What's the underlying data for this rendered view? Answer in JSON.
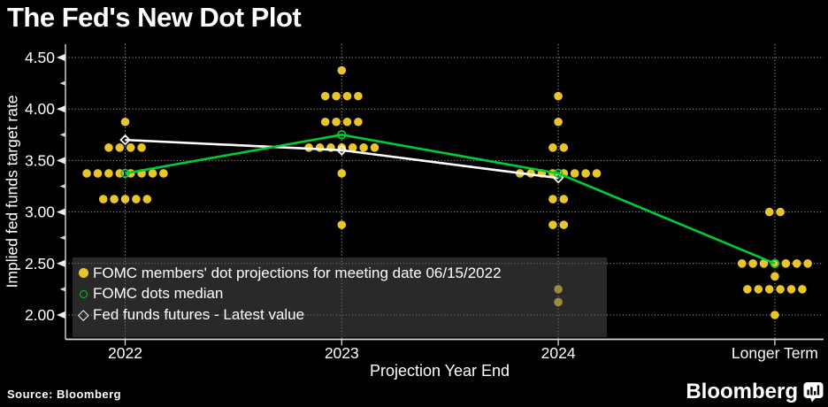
{
  "title": "The Fed's New Dot Plot",
  "source": "Source: Bloomberg",
  "brand": {
    "name": "Bloomberg",
    "icon": "bloomberg-bar-chart-bubble-icon"
  },
  "colors": {
    "background": "#000000",
    "text": "#FFFFFF",
    "dots": "#E9C52A",
    "median_line": "#00CC33",
    "futures_line": "#FFFFFF",
    "axis": "#D9D9D9",
    "legend_background": "rgba(82,82,82,0.5)"
  },
  "legend": {
    "items": [
      {
        "marker": "filled-yellow-dot",
        "label": "FOMC members' dot projections for meeting date 06/15/2022"
      },
      {
        "marker": "open-green-circle",
        "label": "FOMC dots median"
      },
      {
        "marker": "open-white-diamond",
        "label": "Fed funds futures - Latest value"
      }
    ]
  },
  "chart_data": {
    "type": "scatter",
    "title": "The Fed's New Dot Plot",
    "xlabel": "Projection Year End",
    "ylabel": "Implied fed funds target rate",
    "categories": [
      "2022",
      "2023",
      "2024",
      "Longer Term"
    ],
    "ylim": [
      1.85,
      4.63
    ],
    "yticks_major": [
      "4.50",
      "4.00",
      "3.50",
      "3.00",
      "2.50",
      "2.00"
    ],
    "yticks_minor": [
      4.25,
      3.75,
      3.25,
      2.75,
      2.25
    ],
    "grid": "dotted",
    "legend_position": "inside-bottom-left",
    "series": [
      {
        "name": "FOMC members' dot projections for meeting date 06/15/2022",
        "type": "dot-cluster",
        "marker": "filled-circle",
        "color": "#E9C52A",
        "dots": [
          {
            "category": "2022",
            "value": 3.875,
            "count": 1
          },
          {
            "category": "2022",
            "value": 3.625,
            "count": 4
          },
          {
            "category": "2022",
            "value": 3.375,
            "count": 8
          },
          {
            "category": "2022",
            "value": 3.125,
            "count": 5
          },
          {
            "category": "2023",
            "value": 4.375,
            "count": 1
          },
          {
            "category": "2023",
            "value": 4.125,
            "count": 4
          },
          {
            "category": "2023",
            "value": 3.875,
            "count": 4
          },
          {
            "category": "2023",
            "value": 3.625,
            "count": 7
          },
          {
            "category": "2023",
            "value": 3.375,
            "count": 1
          },
          {
            "category": "2023",
            "value": 2.875,
            "count": 1
          },
          {
            "category": "2024",
            "value": 4.125,
            "count": 1
          },
          {
            "category": "2024",
            "value": 3.875,
            "count": 1
          },
          {
            "category": "2024",
            "value": 3.625,
            "count": 2
          },
          {
            "category": "2024",
            "value": 3.375,
            "count": 8
          },
          {
            "category": "2024",
            "value": 3.125,
            "count": 2
          },
          {
            "category": "2024",
            "value": 2.875,
            "count": 2
          },
          {
            "category": "2024",
            "value": 2.25,
            "count": 1
          },
          {
            "category": "2024",
            "value": 2.125,
            "count": 1
          },
          {
            "category": "Longer Term",
            "value": 3.0,
            "count": 2
          },
          {
            "category": "Longer Term",
            "value": 2.5,
            "count": 7
          },
          {
            "category": "Longer Term",
            "value": 2.375,
            "count": 1
          },
          {
            "category": "Longer Term",
            "value": 2.25,
            "count": 6
          },
          {
            "category": "Longer Term",
            "value": 2.0,
            "count": 1
          }
        ]
      },
      {
        "name": "Fed funds futures - Latest value",
        "type": "line",
        "marker": "open-diamond",
        "color": "#FFFFFF",
        "points": [
          {
            "category": "2022",
            "value": 3.7
          },
          {
            "category": "2023",
            "value": 3.6
          },
          {
            "category": "2024",
            "value": 3.33
          }
        ]
      },
      {
        "name": "FOMC dots median",
        "type": "line",
        "marker": "open-circle",
        "color": "#00CC33",
        "points": [
          {
            "category": "2022",
            "value": 3.375
          },
          {
            "category": "2023",
            "value": 3.75
          },
          {
            "category": "2024",
            "value": 3.375
          },
          {
            "category": "Longer Term",
            "value": 2.5
          }
        ]
      }
    ]
  }
}
